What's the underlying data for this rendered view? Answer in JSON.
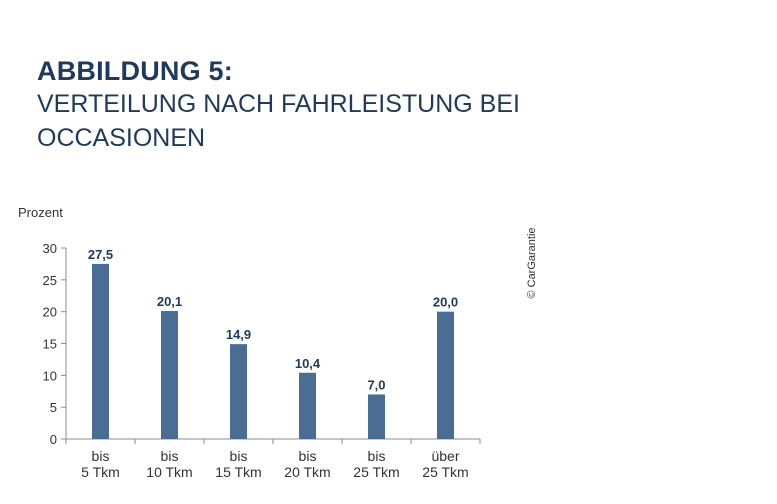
{
  "heading": {
    "label": "ABBILDUNG 5:",
    "subtitle_line1": "VERTEILUNG NACH FAHRLEISTUNG BEI",
    "subtitle_line2": "OCCASIONEN"
  },
  "copyright": "© CarGarantie",
  "colors": {
    "bar": "#4a6d94",
    "title": "#1f3a5a",
    "axis": "#8c8c8c"
  },
  "chart_data": {
    "type": "bar",
    "ylabel": "Prozent",
    "ylim": [
      0,
      30
    ],
    "yticks": [
      "0",
      "5",
      "10",
      "15",
      "20",
      "25",
      "30"
    ],
    "categories": [
      [
        "bis",
        "5 Tkm"
      ],
      [
        "bis",
        "10 Tkm"
      ],
      [
        "bis",
        "15 Tkm"
      ],
      [
        "bis",
        "20 Tkm"
      ],
      [
        "bis",
        "25 Tkm"
      ],
      [
        "über",
        "25 Tkm"
      ]
    ],
    "values": [
      27.5,
      20.1,
      14.9,
      10.4,
      7.0,
      20.0
    ],
    "data_labels": [
      "27,5",
      "20,1",
      "14,9",
      "10,4",
      "7,0",
      "20,0"
    ],
    "grid": false,
    "legend": "none"
  }
}
